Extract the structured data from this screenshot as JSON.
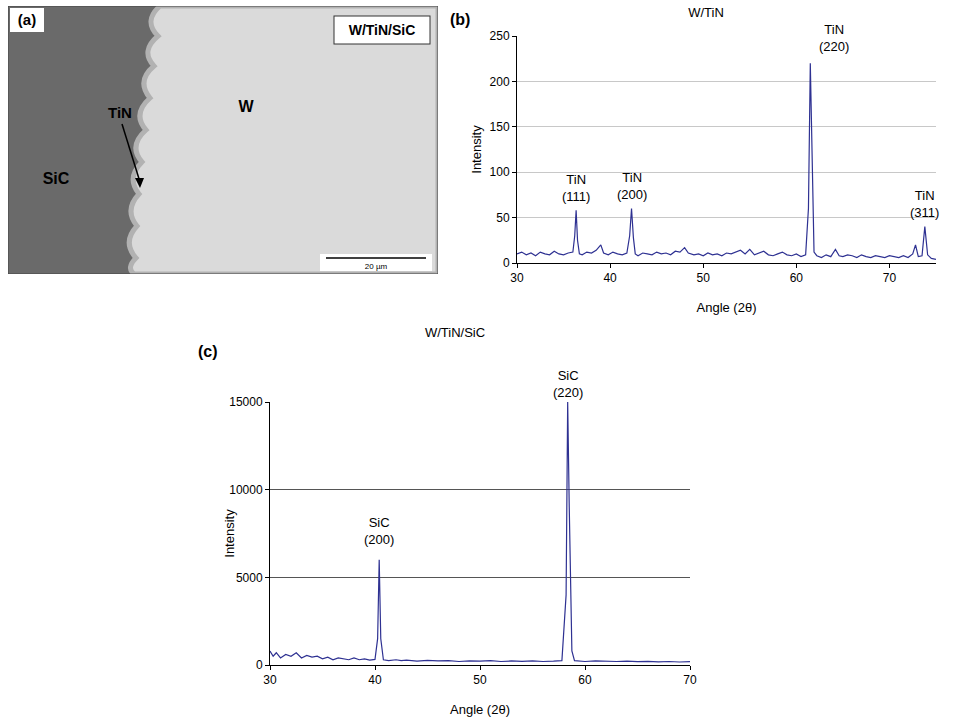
{
  "micrograph": {
    "panel": "(a)",
    "title": "W/TiN/SiC",
    "labels": {
      "substrate": "SiC",
      "interlayer": "TiN",
      "coating": "W"
    },
    "scale_bar": "20 µm"
  },
  "chart_data": [
    {
      "panel": "(b)",
      "type": "line",
      "title": "W/TiN",
      "x_label": "Angle (2θ)",
      "y_label": "Intensity",
      "x": [
        30,
        30.5,
        31,
        31.5,
        32,
        32.5,
        33,
        33.5,
        34,
        34.5,
        35,
        35.5,
        36,
        36.2,
        36.35,
        36.5,
        36.7,
        37,
        37.5,
        38,
        38.5,
        39,
        39.3,
        39.8,
        40.3,
        40.8,
        41.3,
        41.8,
        42.1,
        42.3,
        42.5,
        42.7,
        43,
        43.5,
        44,
        44.5,
        45,
        45.5,
        46,
        46.5,
        47,
        47.5,
        48,
        48.4,
        49,
        49.5,
        50,
        50.5,
        51,
        51.5,
        52,
        52.5,
        53,
        53.5,
        54,
        54.5,
        55,
        55.5,
        56,
        56.5,
        57,
        57.5,
        58,
        58.5,
        59,
        59.5,
        60,
        60.5,
        61,
        61.3,
        61.5,
        61.7,
        61.9,
        62.2,
        62.7,
        63.2,
        63.7,
        64.2,
        64.6,
        65,
        65.5,
        66,
        66.5,
        67,
        67.5,
        68,
        68.5,
        69,
        69.5,
        70,
        70.5,
        71,
        71.5,
        72,
        72.5,
        72.8,
        73.1,
        73.5,
        73.8,
        74.1,
        74.5,
        75
      ],
      "series": [
        {
          "color": "#2e3192",
          "values": [
            10,
            12,
            9,
            11,
            8,
            12,
            10,
            9,
            13,
            10,
            9,
            11,
            12,
            30,
            58,
            25,
            10,
            9,
            12,
            11,
            14,
            20,
            11,
            9,
            12,
            10,
            9,
            11,
            30,
            60,
            28,
            10,
            8,
            11,
            10,
            9,
            12,
            10,
            11,
            9,
            13,
            12,
            17,
            11,
            9,
            10,
            8,
            11,
            9,
            10,
            8,
            11,
            10,
            12,
            14,
            10,
            15,
            9,
            11,
            13,
            9,
            8,
            10,
            12,
            9,
            8,
            10,
            7,
            9,
            60,
            220,
            90,
            12,
            8,
            6,
            9,
            7,
            15,
            8,
            7,
            9,
            8,
            6,
            9,
            7,
            6,
            8,
            7,
            6,
            8,
            7,
            6,
            8,
            6,
            10,
            20,
            7,
            8,
            40,
            9,
            5,
            4
          ]
        }
      ],
      "xlim": [
        30,
        75
      ],
      "xticks": [
        30,
        40,
        50,
        60,
        70
      ],
      "ylim": [
        0,
        250
      ],
      "yticks": [
        0,
        50,
        100,
        150,
        200,
        250
      ],
      "grid": true,
      "annotations": [
        {
          "text": "TiN (111)",
          "x": 36.3,
          "y": 63
        },
        {
          "text": "TiN (200)",
          "x": 42.3,
          "y": 65
        },
        {
          "text": "TiN (220)",
          "x": 64,
          "y": 228
        },
        {
          "text": "TiN (311)",
          "x": 73.8,
          "y": 45
        }
      ]
    },
    {
      "panel": "(c)",
      "type": "line",
      "title": "W/TiN/SiC",
      "x_label": "Angle (2θ)",
      "y_label": "Intensity",
      "x": [
        30,
        30.3,
        30.6,
        31,
        31.5,
        32,
        32.5,
        33,
        33.5,
        34,
        34.5,
        35,
        35.5,
        36,
        36.5,
        37,
        37.5,
        38,
        38.5,
        39,
        39.5,
        40,
        40.25,
        40.4,
        40.55,
        40.8,
        41.3,
        42,
        42.5,
        43,
        44,
        45,
        46,
        47,
        48,
        49,
        50,
        51,
        52,
        53,
        54,
        55,
        56,
        57,
        57.8,
        58.2,
        58.35,
        58.5,
        58.6,
        58.75,
        59,
        60,
        61,
        62,
        63,
        64,
        65,
        66,
        67,
        68,
        69,
        70
      ],
      "series": [
        {
          "color": "#2e3192",
          "values": [
            800,
            500,
            700,
            400,
            600,
            500,
            700,
            400,
            550,
            450,
            500,
            350,
            450,
            300,
            400,
            350,
            300,
            400,
            300,
            350,
            280,
            320,
            1500,
            6000,
            1500,
            300,
            250,
            300,
            250,
            280,
            220,
            260,
            230,
            250,
            200,
            240,
            220,
            250,
            200,
            230,
            210,
            240,
            200,
            220,
            250,
            4000,
            15000,
            9000,
            5500,
            800,
            250,
            200,
            230,
            210,
            200,
            220,
            190,
            210,
            180,
            200,
            170,
            190
          ]
        }
      ],
      "xlim": [
        30,
        70
      ],
      "xticks": [
        30,
        40,
        50,
        60,
        70
      ],
      "ylim": [
        0,
        15000
      ],
      "yticks": [
        0,
        5000,
        10000,
        15000
      ],
      "grid": true,
      "annotations": [
        {
          "text": "SiC (200)",
          "x": 40.4,
          "y": 6600
        },
        {
          "text": "SiC (220)",
          "x": 58.35,
          "y": 15000
        }
      ]
    }
  ]
}
